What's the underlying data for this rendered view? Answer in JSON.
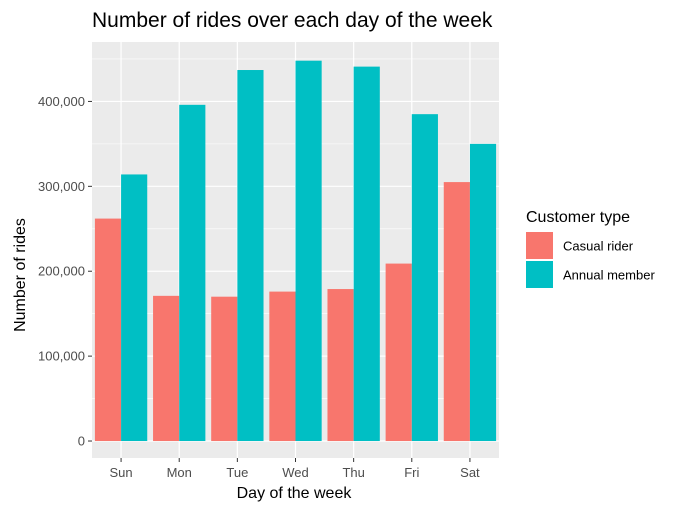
{
  "chart_data": {
    "type": "bar",
    "title": "Number of rides over each day of the week",
    "xlabel": "Day of the week",
    "ylabel": "Number of rides",
    "categories": [
      "Sun",
      "Mon",
      "Tue",
      "Wed",
      "Thu",
      "Fri",
      "Sat"
    ],
    "series": [
      {
        "name": "Casual rider",
        "color": "#F8766D",
        "values": [
          262000,
          171000,
          170000,
          176000,
          179000,
          209000,
          305000
        ]
      },
      {
        "name": "Annual member",
        "color": "#00BFC4",
        "values": [
          314000,
          396000,
          437000,
          448000,
          441000,
          385000,
          350000
        ]
      }
    ],
    "yticks": [
      0,
      100000,
      200000,
      300000,
      400000
    ],
    "ytick_labels": [
      "0",
      "100,000",
      "200,000",
      "300,000",
      "400,000"
    ],
    "ylim": [
      -20000,
      470000
    ],
    "grid": true,
    "legend": {
      "title": "Customer type",
      "position": "right"
    },
    "panel_background": "#EBEBEB",
    "grid_color": "#FFFFFF"
  }
}
